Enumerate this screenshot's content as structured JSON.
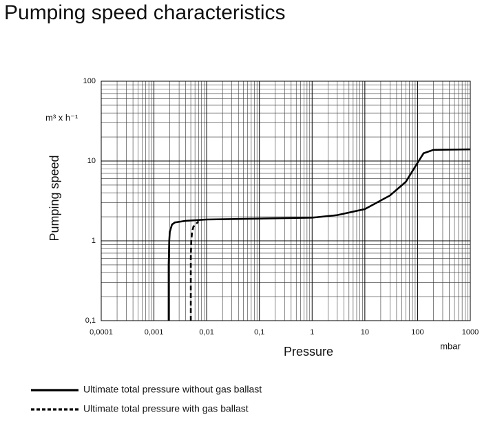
{
  "chart_data": {
    "type": "line",
    "title": "Pumping speed characteristics",
    "ylabel": "Pumping speed",
    "yunit": "m³ x h⁻¹",
    "xlabel": "Pressure",
    "xunit": "mbar",
    "xscale": "log",
    "yscale": "log",
    "grid": true,
    "xlim": [
      0.0001,
      1000
    ],
    "ylim": [
      0.1,
      100
    ],
    "xticks": [
      {
        "value": 0.0001,
        "label": "0,0001"
      },
      {
        "value": 0.001,
        "label": "0,001"
      },
      {
        "value": 0.01,
        "label": "0,01"
      },
      {
        "value": 0.1,
        "label": "0,1"
      },
      1,
      10,
      100,
      1000
    ],
    "yticks": [
      {
        "value": 0.1,
        "label": "0,1"
      },
      1,
      10,
      100
    ],
    "series": [
      {
        "name": "Ultimate total pressure without gas ballast",
        "color": "#000000",
        "line_style": "solid",
        "x": [
          0.0019,
          0.0019,
          0.00195,
          0.002,
          0.0022,
          0.0025,
          0.004,
          0.01,
          0.1,
          1,
          3,
          10,
          30,
          60,
          100,
          130,
          200,
          1000
        ],
        "values": [
          0.1,
          0.5,
          1.0,
          1.3,
          1.6,
          1.7,
          1.78,
          1.85,
          1.9,
          1.95,
          2.1,
          2.5,
          3.7,
          5.5,
          9.5,
          12.5,
          13.8,
          14
        ]
      },
      {
        "name": "Ultimate total pressure with gas ballast",
        "color": "#000000",
        "line_style": "dashed",
        "x": [
          0.005,
          0.005,
          0.0051,
          0.0053,
          0.0056,
          0.007
        ],
        "values": [
          0.1,
          0.6,
          1.0,
          1.3,
          1.5,
          1.75
        ]
      }
    ]
  }
}
